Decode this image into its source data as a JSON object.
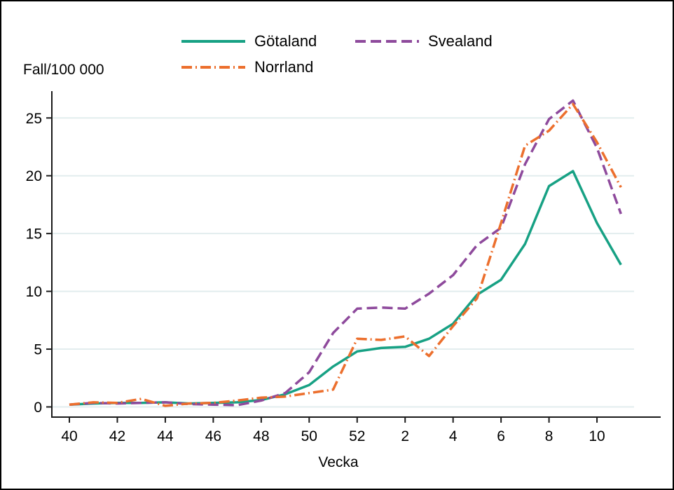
{
  "chart_data": {
    "type": "line",
    "title": "",
    "xlabel": "Vecka",
    "ylabel": "Fall/100 000",
    "x_categories": [
      "40",
      "41",
      "42",
      "43",
      "44",
      "45",
      "46",
      "47",
      "48",
      "49",
      "50",
      "51",
      "52",
      "1",
      "2",
      "3",
      "4",
      "5",
      "6",
      "7",
      "8",
      "9",
      "10",
      "11"
    ],
    "x_tick_labels": [
      "40",
      "42",
      "44",
      "46",
      "48",
      "50",
      "52",
      "2",
      "4",
      "6",
      "8",
      "10"
    ],
    "y_ticks": [
      0,
      5,
      10,
      15,
      20,
      25
    ],
    "ylim": [
      0,
      27.3
    ],
    "grid": "horizontal",
    "gridline_color": "#E2EDEE",
    "axis_color": "#1a1a1a",
    "legend_position": "top-center",
    "series": [
      {
        "name": "Götaland",
        "color": "#17A184",
        "line_style": "solid",
        "values": [
          0.2,
          0.3,
          0.35,
          0.35,
          0.4,
          0.3,
          0.35,
          0.4,
          0.6,
          1.1,
          1.9,
          3.5,
          4.8,
          5.1,
          5.2,
          5.9,
          7.2,
          9.7,
          11.0,
          14.1,
          19.1,
          20.4,
          15.9,
          12.3
        ]
      },
      {
        "name": "Svealand",
        "color": "#8E4A9C",
        "line_style": "dashed",
        "values": [
          0.2,
          0.35,
          0.3,
          0.35,
          0.4,
          0.25,
          0.2,
          0.15,
          0.55,
          1.2,
          3.0,
          6.4,
          8.5,
          8.6,
          8.5,
          9.8,
          11.4,
          14.0,
          15.5,
          21.0,
          24.9,
          26.5,
          22.4,
          16.7
        ]
      },
      {
        "name": "Norrland",
        "color": "#EC6F2D",
        "line_style": "dashdot",
        "values": [
          0.2,
          0.4,
          0.35,
          0.7,
          0.1,
          0.3,
          0.35,
          0.55,
          0.8,
          0.9,
          1.2,
          1.5,
          5.9,
          5.8,
          6.1,
          4.4,
          7.0,
          9.4,
          15.9,
          22.6,
          23.9,
          26.2,
          22.9,
          19.0
        ]
      }
    ]
  }
}
